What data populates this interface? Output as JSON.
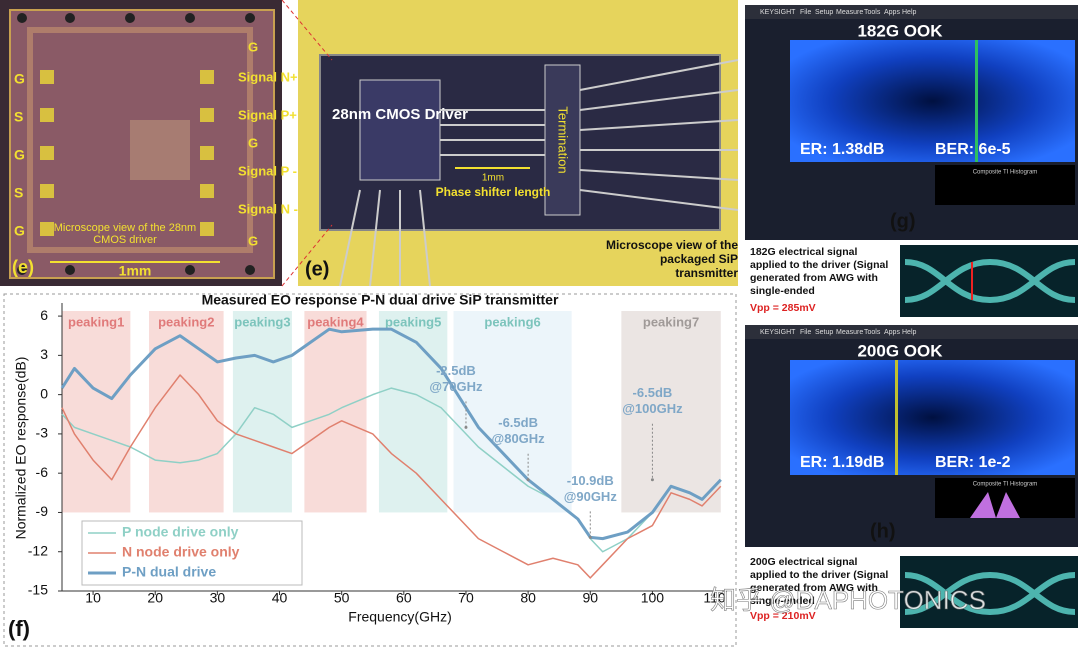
{
  "chart_data": {
    "type": "line",
    "title": "Measured EO response P-N dual drive SiP transmitter",
    "xlabel": "Frequency(GHz)",
    "ylabel": "Normalized EO response(dB)",
    "panel_label": "(f)",
    "x": [
      5,
      7,
      10,
      13,
      16,
      20,
      24,
      27,
      30,
      33,
      36,
      39,
      42,
      45,
      48,
      50,
      55,
      58,
      62,
      66,
      70,
      72,
      76,
      80,
      84,
      88,
      90,
      92,
      96,
      100,
      103,
      106,
      108,
      111
    ],
    "series": [
      {
        "name": "P node drive only",
        "color": "#8fd0c6",
        "width": 1.5,
        "values": [
          -1.5,
          -2.5,
          -3,
          -3.5,
          -4,
          -5,
          -5.2,
          -5,
          -4.5,
          -3,
          -1,
          -1.5,
          -2.5,
          -2,
          -1.5,
          -1,
          0,
          0.5,
          0,
          -1,
          -3,
          -4,
          -5.5,
          -7,
          -8,
          -9.5,
          -11,
          -12,
          -11,
          -9,
          -7,
          -7.5,
          -8,
          -6.5
        ]
      },
      {
        "name": "N node drive only",
        "color": "#e0806e",
        "width": 1.5,
        "values": [
          -1,
          -3,
          -5,
          -6.5,
          -4,
          -1,
          1.5,
          0,
          -2,
          -3,
          -3.5,
          -4,
          -4.5,
          -3.5,
          -2.5,
          -2,
          -3,
          -4.5,
          -6,
          -8,
          -10,
          -11,
          -12,
          -13,
          -12.5,
          -13,
          -14,
          -13,
          -11,
          -10,
          -7.5,
          -8,
          -8.5,
          -7
        ]
      },
      {
        "name": "P-N dual drive",
        "color": "#6e9fc4",
        "width": 3,
        "values": [
          0.5,
          2,
          0.5,
          -0.3,
          1.5,
          3.5,
          4.5,
          3.5,
          2.5,
          2.8,
          3,
          2.5,
          3,
          4,
          5,
          4.8,
          5,
          5,
          4,
          2,
          -1,
          -2.5,
          -4.5,
          -6.5,
          -8,
          -9.5,
          -10.9,
          -11,
          -10.5,
          -9,
          -7,
          -7.5,
          -8,
          -6.5
        ]
      }
    ],
    "xlim": [
      5,
      112
    ],
    "ylim": [
      -15,
      7
    ],
    "xticks": [
      10,
      20,
      30,
      40,
      50,
      60,
      70,
      80,
      90,
      100,
      110
    ],
    "yticks": [
      -15,
      -12,
      -9,
      -6,
      -3,
      0,
      3,
      6
    ],
    "legend": "lower left",
    "bands": [
      {
        "label": "peaking1",
        "range": [
          5,
          16
        ],
        "color": "#f3c4c0"
      },
      {
        "label": "peaking2",
        "range": [
          19,
          31
        ],
        "color": "#f3c4c0"
      },
      {
        "label": "peaking3",
        "range": [
          32.5,
          42
        ],
        "color": "#c8e8e4"
      },
      {
        "label": "peaking4",
        "range": [
          44,
          54
        ],
        "color": "#f3c4c0"
      },
      {
        "label": "peaking5",
        "range": [
          56,
          67
        ],
        "color": "#c8e8e4"
      },
      {
        "label": "peaking6",
        "range": [
          68,
          87
        ],
        "color": "#e0eef6"
      },
      {
        "label": "peaking7",
        "range": [
          95,
          111
        ],
        "color": "#ddd3d0"
      }
    ],
    "annotations": [
      {
        "lines": [
          "-2.5dB",
          "@70GHz"
        ],
        "x": 70,
        "y": -2.5
      },
      {
        "lines": [
          "-6.5dB",
          "@80GHz"
        ],
        "x": 80,
        "y": -6.5
      },
      {
        "lines": [
          "-10.9dB",
          "@90GHz"
        ],
        "x": 90,
        "y": -10.9
      },
      {
        "lines": [
          "-6.5dB",
          "@100GHz"
        ],
        "x": 100,
        "y": -6.5
      }
    ]
  },
  "die_photo": {
    "panel_label": "(e)",
    "left_pins": [
      "G",
      "S",
      "G",
      "S",
      "G"
    ],
    "right_pins": [
      "G",
      "Signal N+",
      "Signal P+",
      "G",
      "Signal P -",
      "Signal N -",
      "G"
    ],
    "caption": "Microscope view of the 28nm CMOS driver",
    "scale": "1mm"
  },
  "package_photo": {
    "panel_label": "(e)",
    "driver": "28nm CMOS Driver",
    "termination": "Termination",
    "phase_shifter": "Phase shifter length",
    "scale": "1mm",
    "caption": "Microscope view of the packaged SiP transmitter"
  },
  "scope_g": {
    "panel_label": "(g)",
    "title": "182G OOK",
    "er": "ER: 1.38dB",
    "ber": "BER: 6e-5",
    "menu": [
      "KEYSIGHT",
      "File",
      "Setup",
      "Measure",
      "Tools",
      "Apps",
      "Help"
    ],
    "histogram": "Composite TI Histogram",
    "note": "182G electrical signal applied to the driver (Signal generated from AWG with single-ended",
    "vpp": "Vpp = 285mV"
  },
  "scope_h": {
    "panel_label": "(h)",
    "title": "200G OOK",
    "er": "ER: 1.19dB",
    "ber": "BER: 1e-2",
    "menu": [
      "KEYSIGHT",
      "File",
      "Setup",
      "Measure",
      "Tools",
      "Apps",
      "Help"
    ],
    "histogram": "Composite TI Histogram",
    "note": "200G electrical signal applied to the driver (Signal generated from AWG with single-ended",
    "vpp": "Vpp = 210mV"
  },
  "watermark": "知乎 @DAPHOTONICS"
}
